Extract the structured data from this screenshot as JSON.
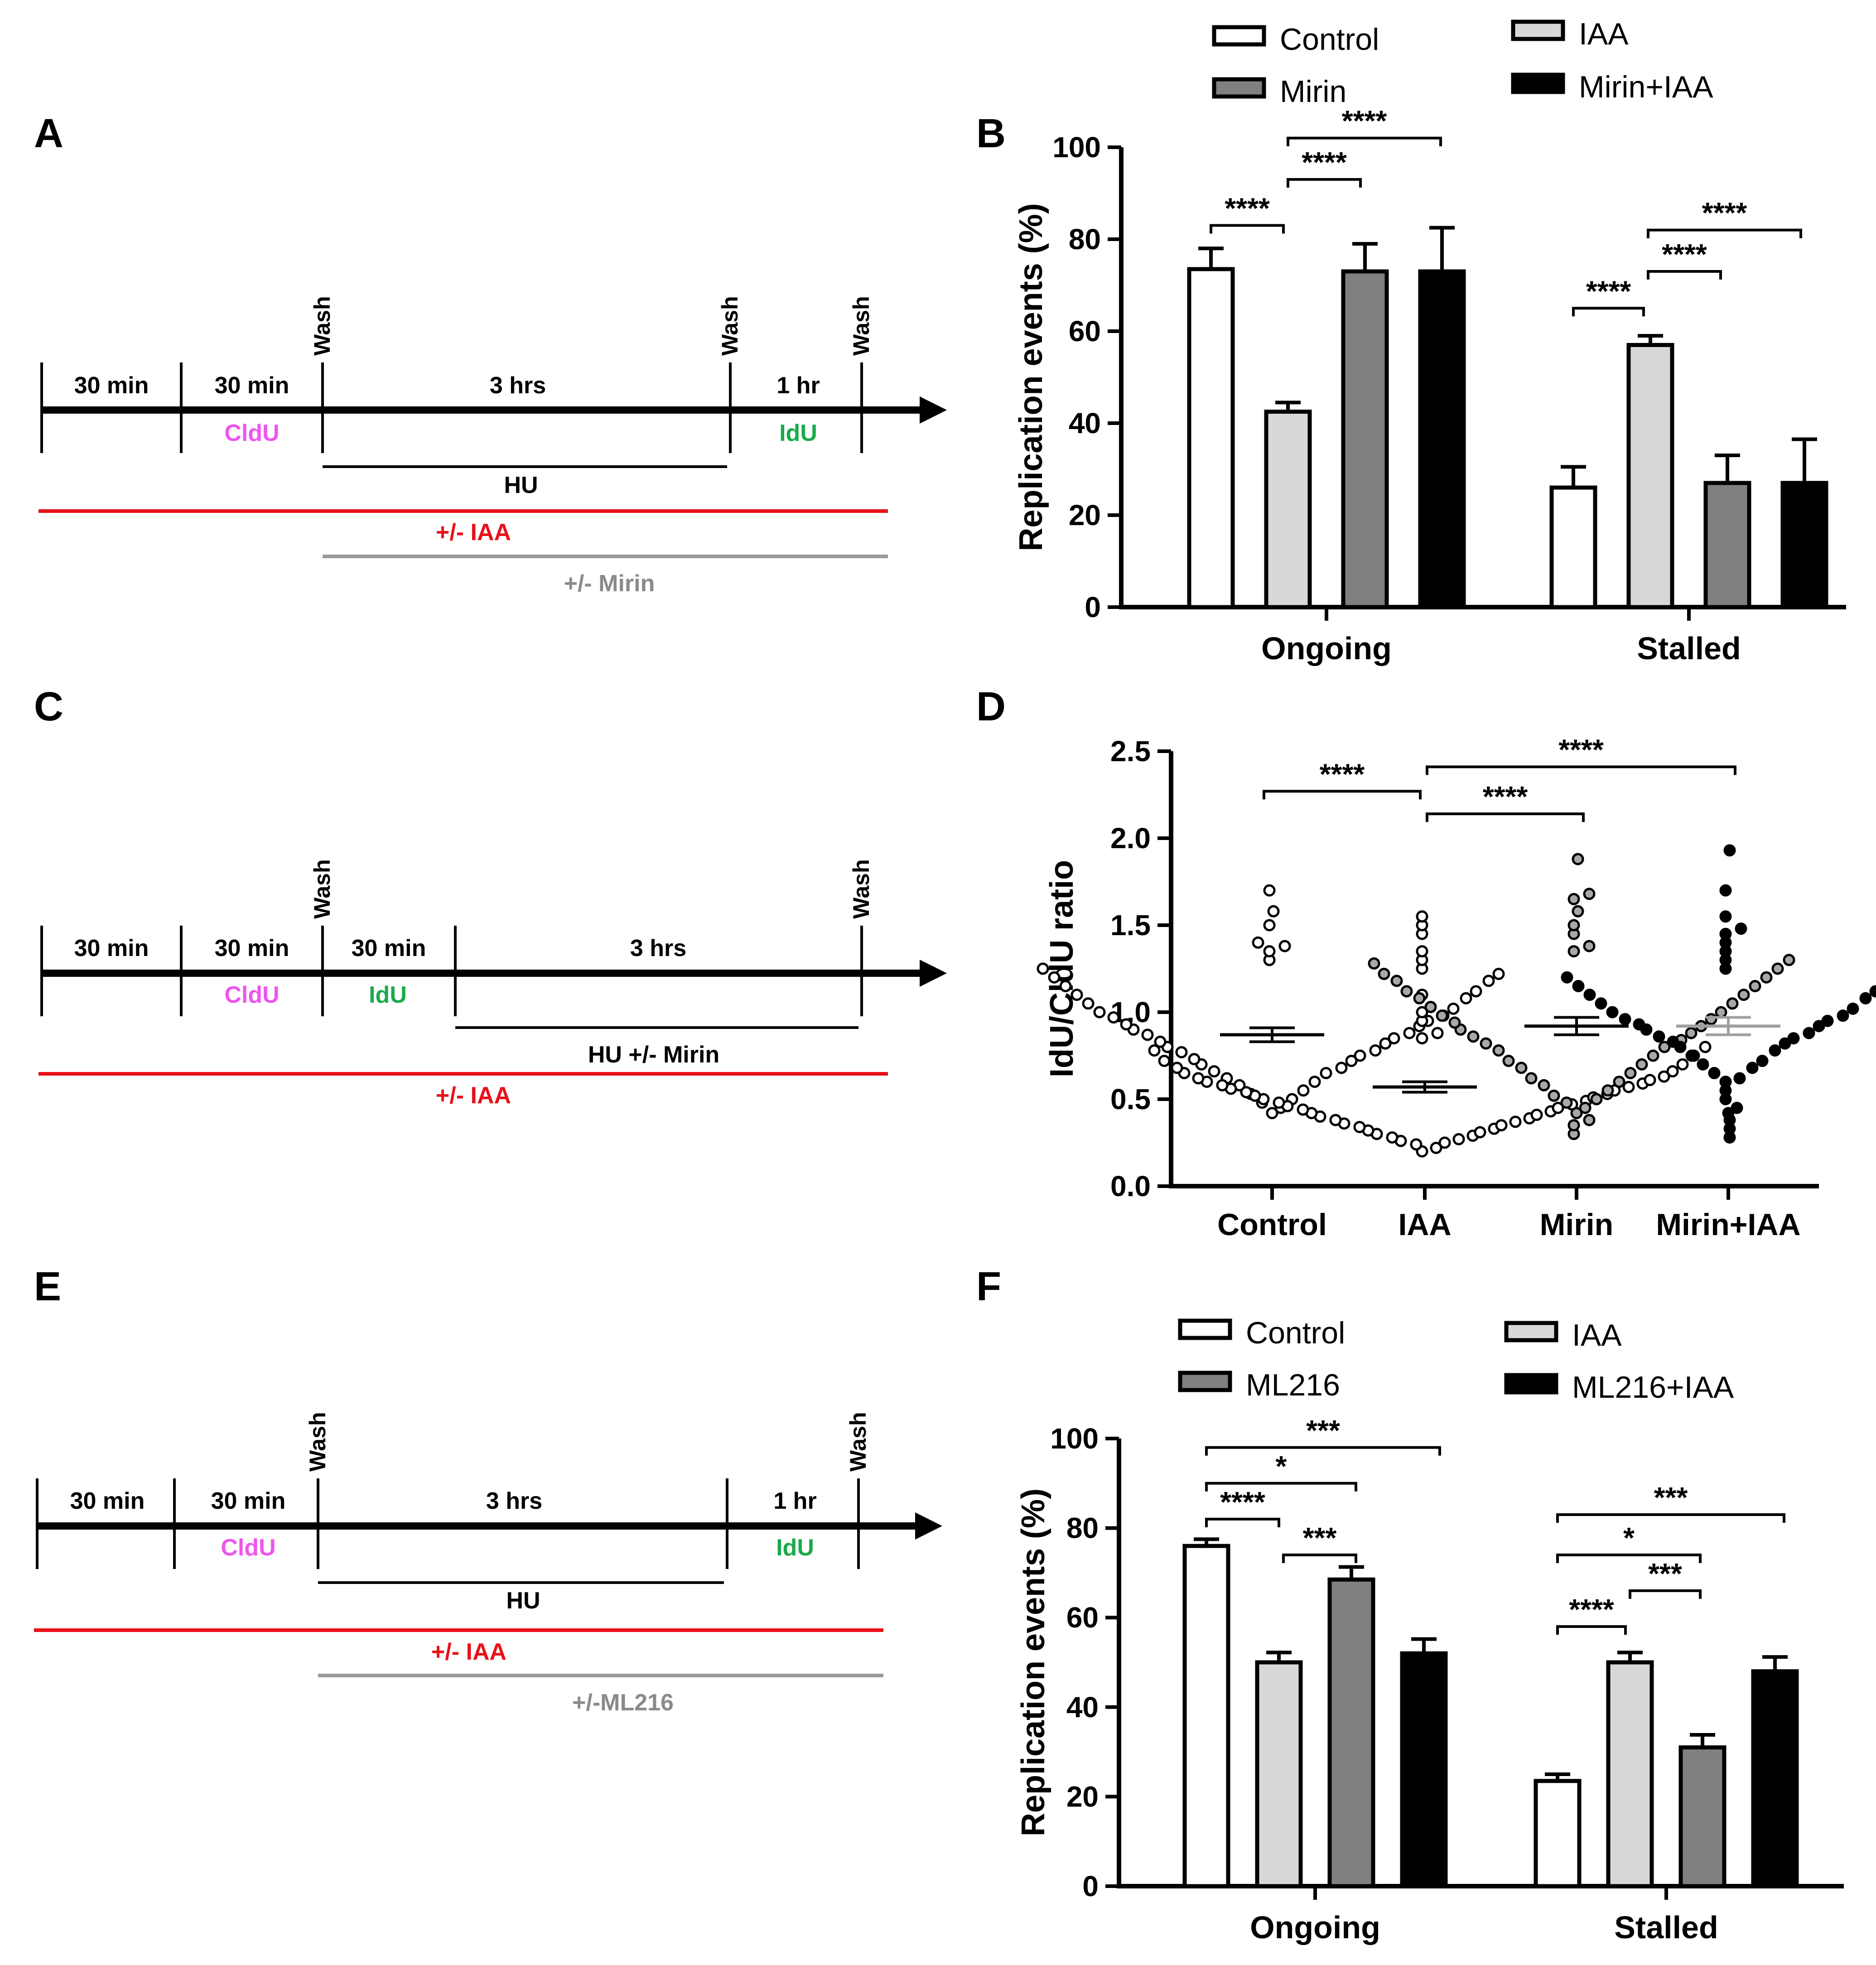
{
  "panel_labels": {
    "A": "A",
    "B": "B",
    "C": "C",
    "D": "D",
    "E": "E",
    "F": "F"
  },
  "colors": {
    "clidu": "#ee55ee",
    "idu": "#1aaa4a",
    "iaa_line": "#e8111a",
    "mirin_line": "#9a9a9a",
    "bar_control": "#ffffff",
    "bar_iaa": "#d8d8d8",
    "bar_mirin": "#808080",
    "bar_combo": "#000000"
  },
  "schematics": {
    "A": {
      "segments": [
        "30 min",
        "30 min",
        "3 hrs",
        "1 hr"
      ],
      "washes": [
        "Wash",
        "Wash",
        "Wash"
      ],
      "pulses": [
        "CldU",
        "IdU"
      ],
      "lines": [
        "HU",
        "+/- IAA",
        "+/- Mirin"
      ]
    },
    "C": {
      "segments": [
        "30 min",
        "30 min",
        "30 min",
        "3 hrs"
      ],
      "washes": [
        "Wash",
        "Wash"
      ],
      "pulses": [
        "CldU",
        "IdU"
      ],
      "lines": [
        "HU +/- Mirin",
        "+/- IAA"
      ]
    },
    "E": {
      "segments": [
        "30 min",
        "30 min",
        "3 hrs",
        "1 hr"
      ],
      "washes": [
        "Wash",
        "Wash"
      ],
      "pulses": [
        "CldU",
        "IdU"
      ],
      "lines": [
        "HU",
        "+/- IAA",
        "+/-ML216"
      ]
    }
  },
  "chart_data": [
    {
      "id": "B",
      "type": "bar",
      "ylabel": "Replication events (%)",
      "ylim": [
        0,
        100
      ],
      "yticks": [
        "0",
        "20",
        "40",
        "60",
        "80",
        "100"
      ],
      "categories": [
        "Ongoing",
        "Stalled"
      ],
      "legend": [
        "Control",
        "IAA",
        "Mirin",
        "Mirin+IAA"
      ],
      "series": [
        {
          "name": "Control",
          "values": [
            73.5,
            26
          ],
          "errors": [
            4.5,
            4.5
          ]
        },
        {
          "name": "IAA",
          "values": [
            42.5,
            57
          ],
          "errors": [
            2,
            2
          ]
        },
        {
          "name": "Mirin",
          "values": [
            73,
            27
          ],
          "errors": [
            6,
            6
          ]
        },
        {
          "name": "Mirin+IAA",
          "values": [
            73,
            27
          ],
          "errors": [
            9.5,
            9.5
          ]
        }
      ],
      "significance": [
        "****",
        "****",
        "****",
        "****",
        "****",
        "****"
      ]
    },
    {
      "id": "D",
      "type": "scatter",
      "ylabel": "IdU/CldU ratio",
      "ylim": [
        0,
        2.5
      ],
      "yticks": [
        "0.0",
        "0.5",
        "1.0",
        "1.5",
        "2.0",
        "2.5"
      ],
      "categories": [
        "Control",
        "IAA",
        "Mirin",
        "Mirin+IAA"
      ],
      "means": [
        0.87,
        0.57,
        0.92,
        0.92
      ],
      "sems": [
        0.04,
        0.03,
        0.05,
        0.05
      ],
      "points": [
        [
          1.7,
          1.58,
          1.5,
          1.4,
          1.38,
          1.35,
          1.3,
          1.25,
          1.22,
          1.2,
          1.18,
          1.15,
          1.12,
          1.1,
          1.08,
          1.05,
          1.02,
          1.0,
          0.98,
          0.97,
          0.95,
          0.93,
          0.92,
          0.9,
          0.88,
          0.87,
          0.85,
          0.83,
          0.82,
          0.8,
          0.78,
          0.77,
          0.75,
          0.73,
          0.72,
          0.7,
          0.68,
          0.66,
          0.65,
          0.62,
          0.6,
          0.58,
          0.55,
          0.53,
          0.5,
          0.48,
          0.45,
          0.42
        ],
        [
          1.55,
          1.5,
          1.45,
          1.35,
          1.3,
          1.25,
          1.1,
          1.0,
          0.95,
          0.88,
          0.85,
          0.8,
          0.78,
          0.75,
          0.72,
          0.7,
          0.68,
          0.66,
          0.65,
          0.63,
          0.62,
          0.61,
          0.6,
          0.59,
          0.58,
          0.57,
          0.56,
          0.55,
          0.54,
          0.53,
          0.52,
          0.51,
          0.5,
          0.49,
          0.48,
          0.47,
          0.46,
          0.45,
          0.44,
          0.43,
          0.42,
          0.41,
          0.4,
          0.39,
          0.38,
          0.37,
          0.36,
          0.35,
          0.34,
          0.33,
          0.32,
          0.31,
          0.3,
          0.29,
          0.28,
          0.27,
          0.26,
          0.25,
          0.24,
          0.22,
          0.2
        ],
        [
          1.88,
          1.68,
          1.65,
          1.58,
          1.5,
          1.45,
          1.38,
          1.35,
          1.3,
          1.28,
          1.25,
          1.22,
          1.2,
          1.18,
          1.15,
          1.12,
          1.1,
          1.08,
          1.05,
          1.03,
          1.0,
          0.98,
          0.96,
          0.94,
          0.92,
          0.9,
          0.88,
          0.86,
          0.84,
          0.82,
          0.8,
          0.78,
          0.75,
          0.72,
          0.7,
          0.68,
          0.65,
          0.62,
          0.6,
          0.58,
          0.55,
          0.52,
          0.5,
          0.48,
          0.45,
          0.42,
          0.38,
          0.35,
          0.3
        ],
        [
          1.93,
          1.7,
          1.55,
          1.48,
          1.45,
          1.4,
          1.35,
          1.3,
          1.25,
          1.2,
          1.18,
          1.15,
          1.12,
          1.1,
          1.08,
          1.05,
          1.02,
          1.0,
          0.98,
          0.96,
          0.95,
          0.93,
          0.92,
          0.9,
          0.88,
          0.86,
          0.85,
          0.83,
          0.82,
          0.8,
          0.78,
          0.75,
          0.72,
          0.7,
          0.68,
          0.65,
          0.62,
          0.6,
          0.55,
          0.5,
          0.45,
          0.42,
          0.38,
          0.33,
          0.28
        ]
      ],
      "significance": [
        "****",
        "****",
        "****"
      ]
    },
    {
      "id": "F",
      "type": "bar",
      "ylabel": "Replication events (%)",
      "ylim": [
        0,
        100
      ],
      "yticks": [
        "0",
        "20",
        "40",
        "60",
        "80",
        "100"
      ],
      "categories": [
        "Ongoing",
        "Stalled"
      ],
      "legend": [
        "Control",
        "IAA",
        "ML216",
        "ML216+IAA"
      ],
      "series": [
        {
          "name": "Control",
          "values": [
            76,
            23.5
          ],
          "errors": [
            1.5,
            1.5
          ]
        },
        {
          "name": "IAA",
          "values": [
            50,
            50
          ],
          "errors": [
            2.2,
            2.2
          ]
        },
        {
          "name": "ML216",
          "values": [
            68.5,
            31
          ],
          "errors": [
            2.8,
            2.8
          ]
        },
        {
          "name": "ML216+IAA",
          "values": [
            52,
            48
          ],
          "errors": [
            3.2,
            3.2
          ]
        }
      ],
      "significance": [
        "***",
        "*",
        "****",
        "***",
        "***",
        "*",
        "***",
        "****"
      ]
    }
  ]
}
